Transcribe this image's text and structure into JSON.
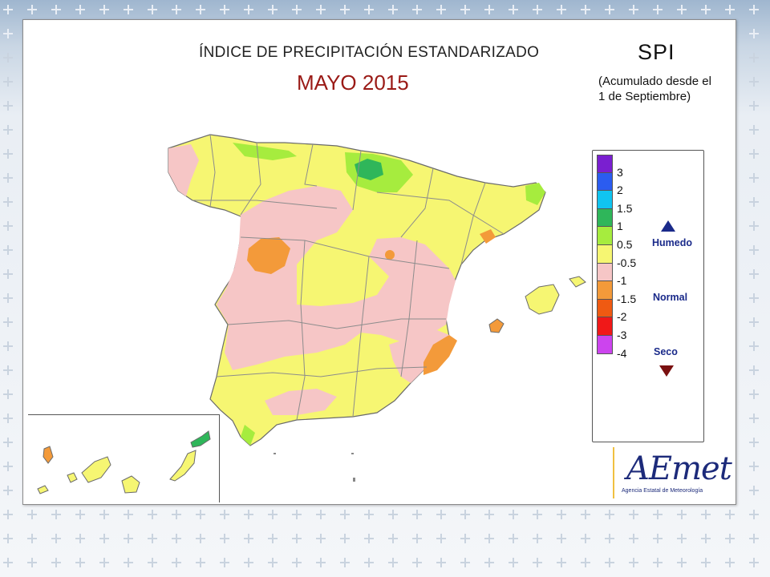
{
  "title": "ÍNDICE DE PRECIPITACIÓN ESTANDARIZADO",
  "subtitle": "MAYO 2015",
  "index_name": "SPI",
  "note_line1": "(Acumulado desde el",
  "note_line2": "1 de Septiembre)",
  "legend": {
    "ticks": [
      "3",
      "2",
      "1.5",
      "1",
      "0.5",
      "-0.5",
      "-1",
      "-1.5",
      "-2",
      "-3",
      "-4"
    ],
    "colors": [
      "#7a1fd0",
      "#2b5cf0",
      "#10c4f0",
      "#2fb65a",
      "#a6ec3e",
      "#f6f672",
      "#f6c6c6",
      "#f39a3a",
      "#ef5a12",
      "#f01818",
      "#cc44ee"
    ],
    "label_wet": "Humedo",
    "label_normal": "Normal",
    "label_dry": "Seco"
  },
  "map_colors": {
    "background": "#ffffff",
    "normal": "#f6f672",
    "dry_light": "#f6c6c6",
    "dry": "#f39a3a",
    "wet_light": "#a6ec3e",
    "wet": "#2fb65a",
    "border": "#8c8c8c"
  },
  "logo": {
    "name": "AEmet",
    "subtitle": "Agencia Estatal de Meteorología"
  }
}
